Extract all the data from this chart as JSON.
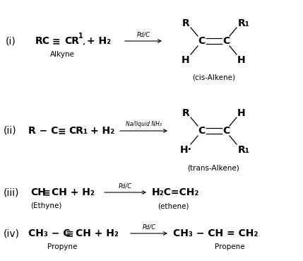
{
  "bg_color": "#ffffff",
  "figsize": [
    4.29,
    3.69
  ],
  "dpi": 100,
  "fs_main": 10,
  "fs_small": 7.5,
  "fs_arrow": 6,
  "xlim": [
    0,
    429
  ],
  "ylim": [
    0,
    369
  ]
}
